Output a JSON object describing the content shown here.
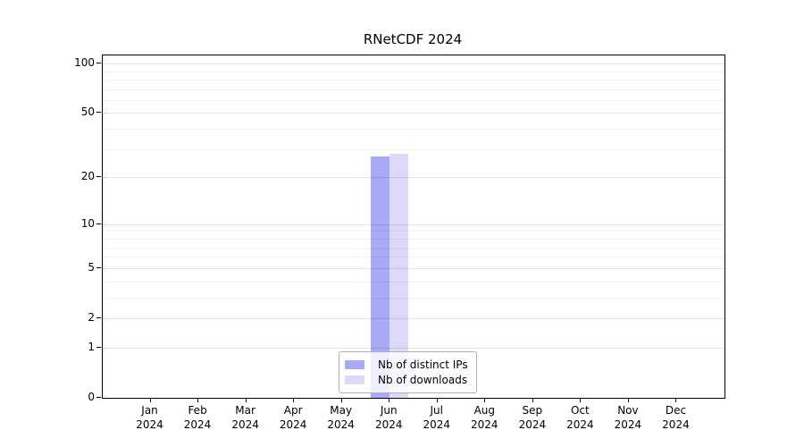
{
  "chart_data": {
    "type": "bar",
    "title": "RNetCDF 2024",
    "categories": [
      "Jan",
      "Feb",
      "Mar",
      "Apr",
      "May",
      "Jun",
      "Jul",
      "Aug",
      "Sep",
      "Oct",
      "Nov",
      "Dec"
    ],
    "category_year": "2024",
    "series": [
      {
        "name": "Nb of distinct IPs",
        "color": "#a9a9f7",
        "values": [
          0,
          0,
          0,
          0,
          0,
          27,
          0,
          0,
          0,
          0,
          0,
          0
        ]
      },
      {
        "name": "Nb of downloads",
        "color": "#dbdbf9",
        "values": [
          0,
          0,
          0,
          0,
          0,
          28,
          0,
          0,
          0,
          0,
          0,
          0
        ]
      }
    ],
    "y_axis": {
      "scale": "log1p",
      "tick_values": [
        0,
        1,
        2,
        5,
        10,
        20,
        50,
        100
      ],
      "minor_grid_values": [
        3,
        4,
        6,
        7,
        8,
        9,
        30,
        40,
        60,
        70,
        80,
        90
      ],
      "max_value": 112
    },
    "x_axis": {
      "tick_count": 12
    },
    "legend": {
      "position": "lower center inside",
      "items": [
        "Nb of distinct IPs",
        "Nb of downloads"
      ]
    },
    "grid": "horizontal",
    "colors": {
      "background": "#ffffff",
      "axis": "#000000",
      "major_grid": "#e2e2e2",
      "minor_grid": "#f1f1f1",
      "legend_border": "#b0b0b0"
    }
  }
}
